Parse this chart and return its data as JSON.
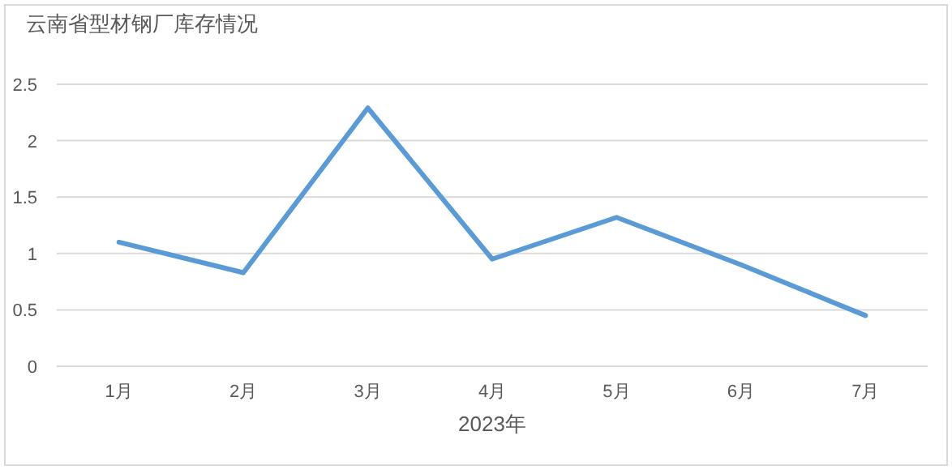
{
  "chart_data": {
    "type": "line",
    "title": "云南省型材钢厂库存情况",
    "xlabel": "2023年",
    "categories": [
      "1月",
      "2月",
      "3月",
      "4月",
      "5月",
      "6月",
      "7月"
    ],
    "series": [
      {
        "color": "#5b9bd5",
        "values": [
          1.1,
          0.83,
          2.29,
          0.95,
          1.32,
          0.9,
          0.45
        ]
      }
    ],
    "ylim": [
      0,
      2.5
    ],
    "yticks": [
      0,
      0.5,
      1,
      1.5,
      2,
      2.5
    ],
    "grid": "y",
    "marker": "none",
    "line_style": "solid"
  }
}
